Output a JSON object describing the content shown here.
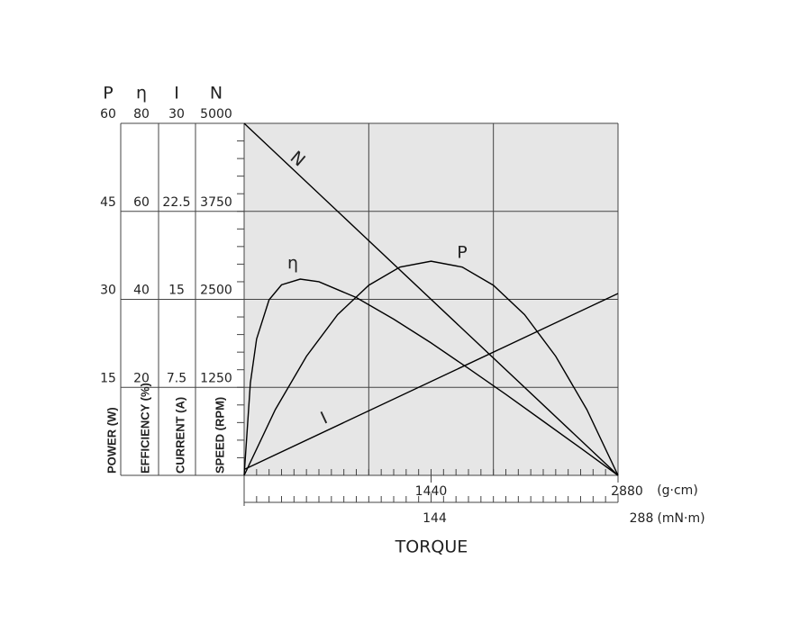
{
  "chart_data": {
    "type": "line",
    "xlabel": "TORQUE",
    "xunit": "(g·cm)",
    "xlim": [
      0,
      2880
    ],
    "xticks": [
      1440,
      2880
    ],
    "x_grid": [
      960,
      1920
    ],
    "x_minor_step": 96,
    "x2unit": "(mN·m)",
    "x2lim": [
      0,
      288
    ],
    "x2ticks": [
      144,
      288
    ],
    "x2_minor_step": 9.6,
    "grid": true,
    "background": "#e6e6e6",
    "axes": [
      {
        "symbol": "P",
        "label": "POWER (W)",
        "ylim": [
          0,
          60
        ],
        "yticks": [
          15,
          30,
          45,
          60
        ]
      },
      {
        "symbol": "η",
        "label": "EFFICIENCY (%)",
        "ylim": [
          0,
          80
        ],
        "yticks": [
          20,
          40,
          60,
          80
        ]
      },
      {
        "symbol": "I",
        "label": "CURRENT (A)",
        "ylim": [
          0,
          30
        ],
        "yticks": [
          7.5,
          15,
          22.5,
          30
        ]
      },
      {
        "symbol": "N",
        "label": "SPEED (RPM)",
        "ylim": [
          0,
          5000
        ],
        "yticks": [
          1250,
          2500,
          3750,
          5000
        ],
        "minor_step": 250
      }
    ],
    "series": [
      {
        "name": "N",
        "axis": 3,
        "color": "#000000",
        "x": [
          0,
          2880
        ],
        "values": [
          5000,
          0
        ]
      },
      {
        "name": "η",
        "axis": 1,
        "color": "#000000",
        "x": [
          0,
          48,
          96,
          192,
          288,
          432,
          576,
          864,
          1152,
          1440,
          1728,
          2016,
          2304,
          2592,
          2880
        ],
        "values": [
          0,
          21.0,
          31.0,
          39.9,
          43.3,
          44.6,
          44.0,
          40.4,
          35.5,
          30.1,
          24.3,
          18.4,
          12.3,
          6.2,
          0
        ]
      },
      {
        "name": "P",
        "axis": 0,
        "color": "#000000",
        "x": [
          0,
          240,
          480,
          720,
          960,
          1200,
          1440,
          1680,
          1920,
          2160,
          2400,
          2640,
          2880
        ],
        "values": [
          0,
          11.2,
          20.3,
          27.4,
          32.4,
          35.5,
          36.5,
          35.5,
          32.4,
          27.4,
          20.3,
          11.2,
          0
        ]
      },
      {
        "name": "I",
        "axis": 2,
        "color": "#000000",
        "x": [
          0,
          2880
        ],
        "values": [
          0.5,
          15.5
        ]
      }
    ]
  }
}
